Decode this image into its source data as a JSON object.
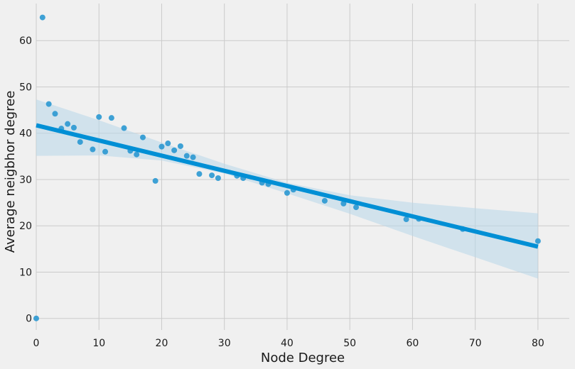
{
  "chart_data": {
    "type": "scatter",
    "title": "",
    "xlabel": "Node Degree",
    "ylabel": "Average neigbhor degree",
    "xlim": [
      0,
      85
    ],
    "ylim": [
      -2.5,
      68
    ],
    "x_ticks": [
      0,
      10,
      20,
      30,
      40,
      50,
      60,
      70,
      80
    ],
    "y_ticks": [
      0,
      10,
      20,
      30,
      40,
      50,
      60
    ],
    "grid": true,
    "colors": {
      "points": "#2a98d2",
      "regression_line": "#008fd5",
      "confidence_band": "#b8d7ea",
      "background": "#f0f0f0",
      "grid": "#cbcbcb"
    },
    "series": [
      {
        "points": [
          [
            0,
            0
          ],
          [
            1,
            65
          ],
          [
            2,
            46.3
          ],
          [
            3,
            44.2
          ],
          [
            4,
            41
          ],
          [
            5,
            42
          ],
          [
            6,
            41.2
          ],
          [
            7,
            38.1
          ],
          [
            9,
            36.5
          ],
          [
            10,
            43.5
          ],
          [
            11,
            36
          ],
          [
            12,
            43.3
          ],
          [
            14,
            41.1
          ],
          [
            15,
            36.2
          ],
          [
            16,
            35.4
          ],
          [
            17,
            39.1
          ],
          [
            19,
            29.7
          ],
          [
            20,
            37.1
          ],
          [
            21,
            37.8
          ],
          [
            22,
            36.3
          ],
          [
            23,
            37.2
          ],
          [
            24,
            35.1
          ],
          [
            25,
            34.8
          ],
          [
            26,
            31.2
          ],
          [
            28,
            30.9
          ],
          [
            29,
            30.3
          ],
          [
            32,
            30.8
          ],
          [
            33,
            30.3
          ],
          [
            36,
            29.3
          ],
          [
            37,
            29
          ],
          [
            40,
            27.1
          ],
          [
            41,
            27.8
          ],
          [
            46,
            25.4
          ],
          [
            49,
            24.8
          ],
          [
            51,
            24
          ],
          [
            59,
            21.4
          ],
          [
            61,
            21.5
          ],
          [
            68,
            19.3
          ],
          [
            80,
            16.7
          ]
        ]
      }
    ],
    "regression": {
      "line": [
        [
          0,
          41.7
        ],
        [
          80,
          15.5
        ]
      ],
      "ci_upper": [
        [
          0,
          47.3
        ],
        [
          10,
          42.8
        ],
        [
          20,
          38.0
        ],
        [
          30,
          33.4
        ],
        [
          40,
          29.3
        ],
        [
          50,
          26.6
        ],
        [
          60,
          25.0
        ],
        [
          70,
          23.8
        ],
        [
          80,
          22.7
        ]
      ],
      "ci_lower": [
        [
          0,
          35.1
        ],
        [
          10,
          35.2
        ],
        [
          20,
          34.1
        ],
        [
          30,
          31.3
        ],
        [
          40,
          27.0
        ],
        [
          50,
          22.6
        ],
        [
          60,
          17.8
        ],
        [
          70,
          13.2
        ],
        [
          80,
          8.6
        ]
      ]
    }
  }
}
